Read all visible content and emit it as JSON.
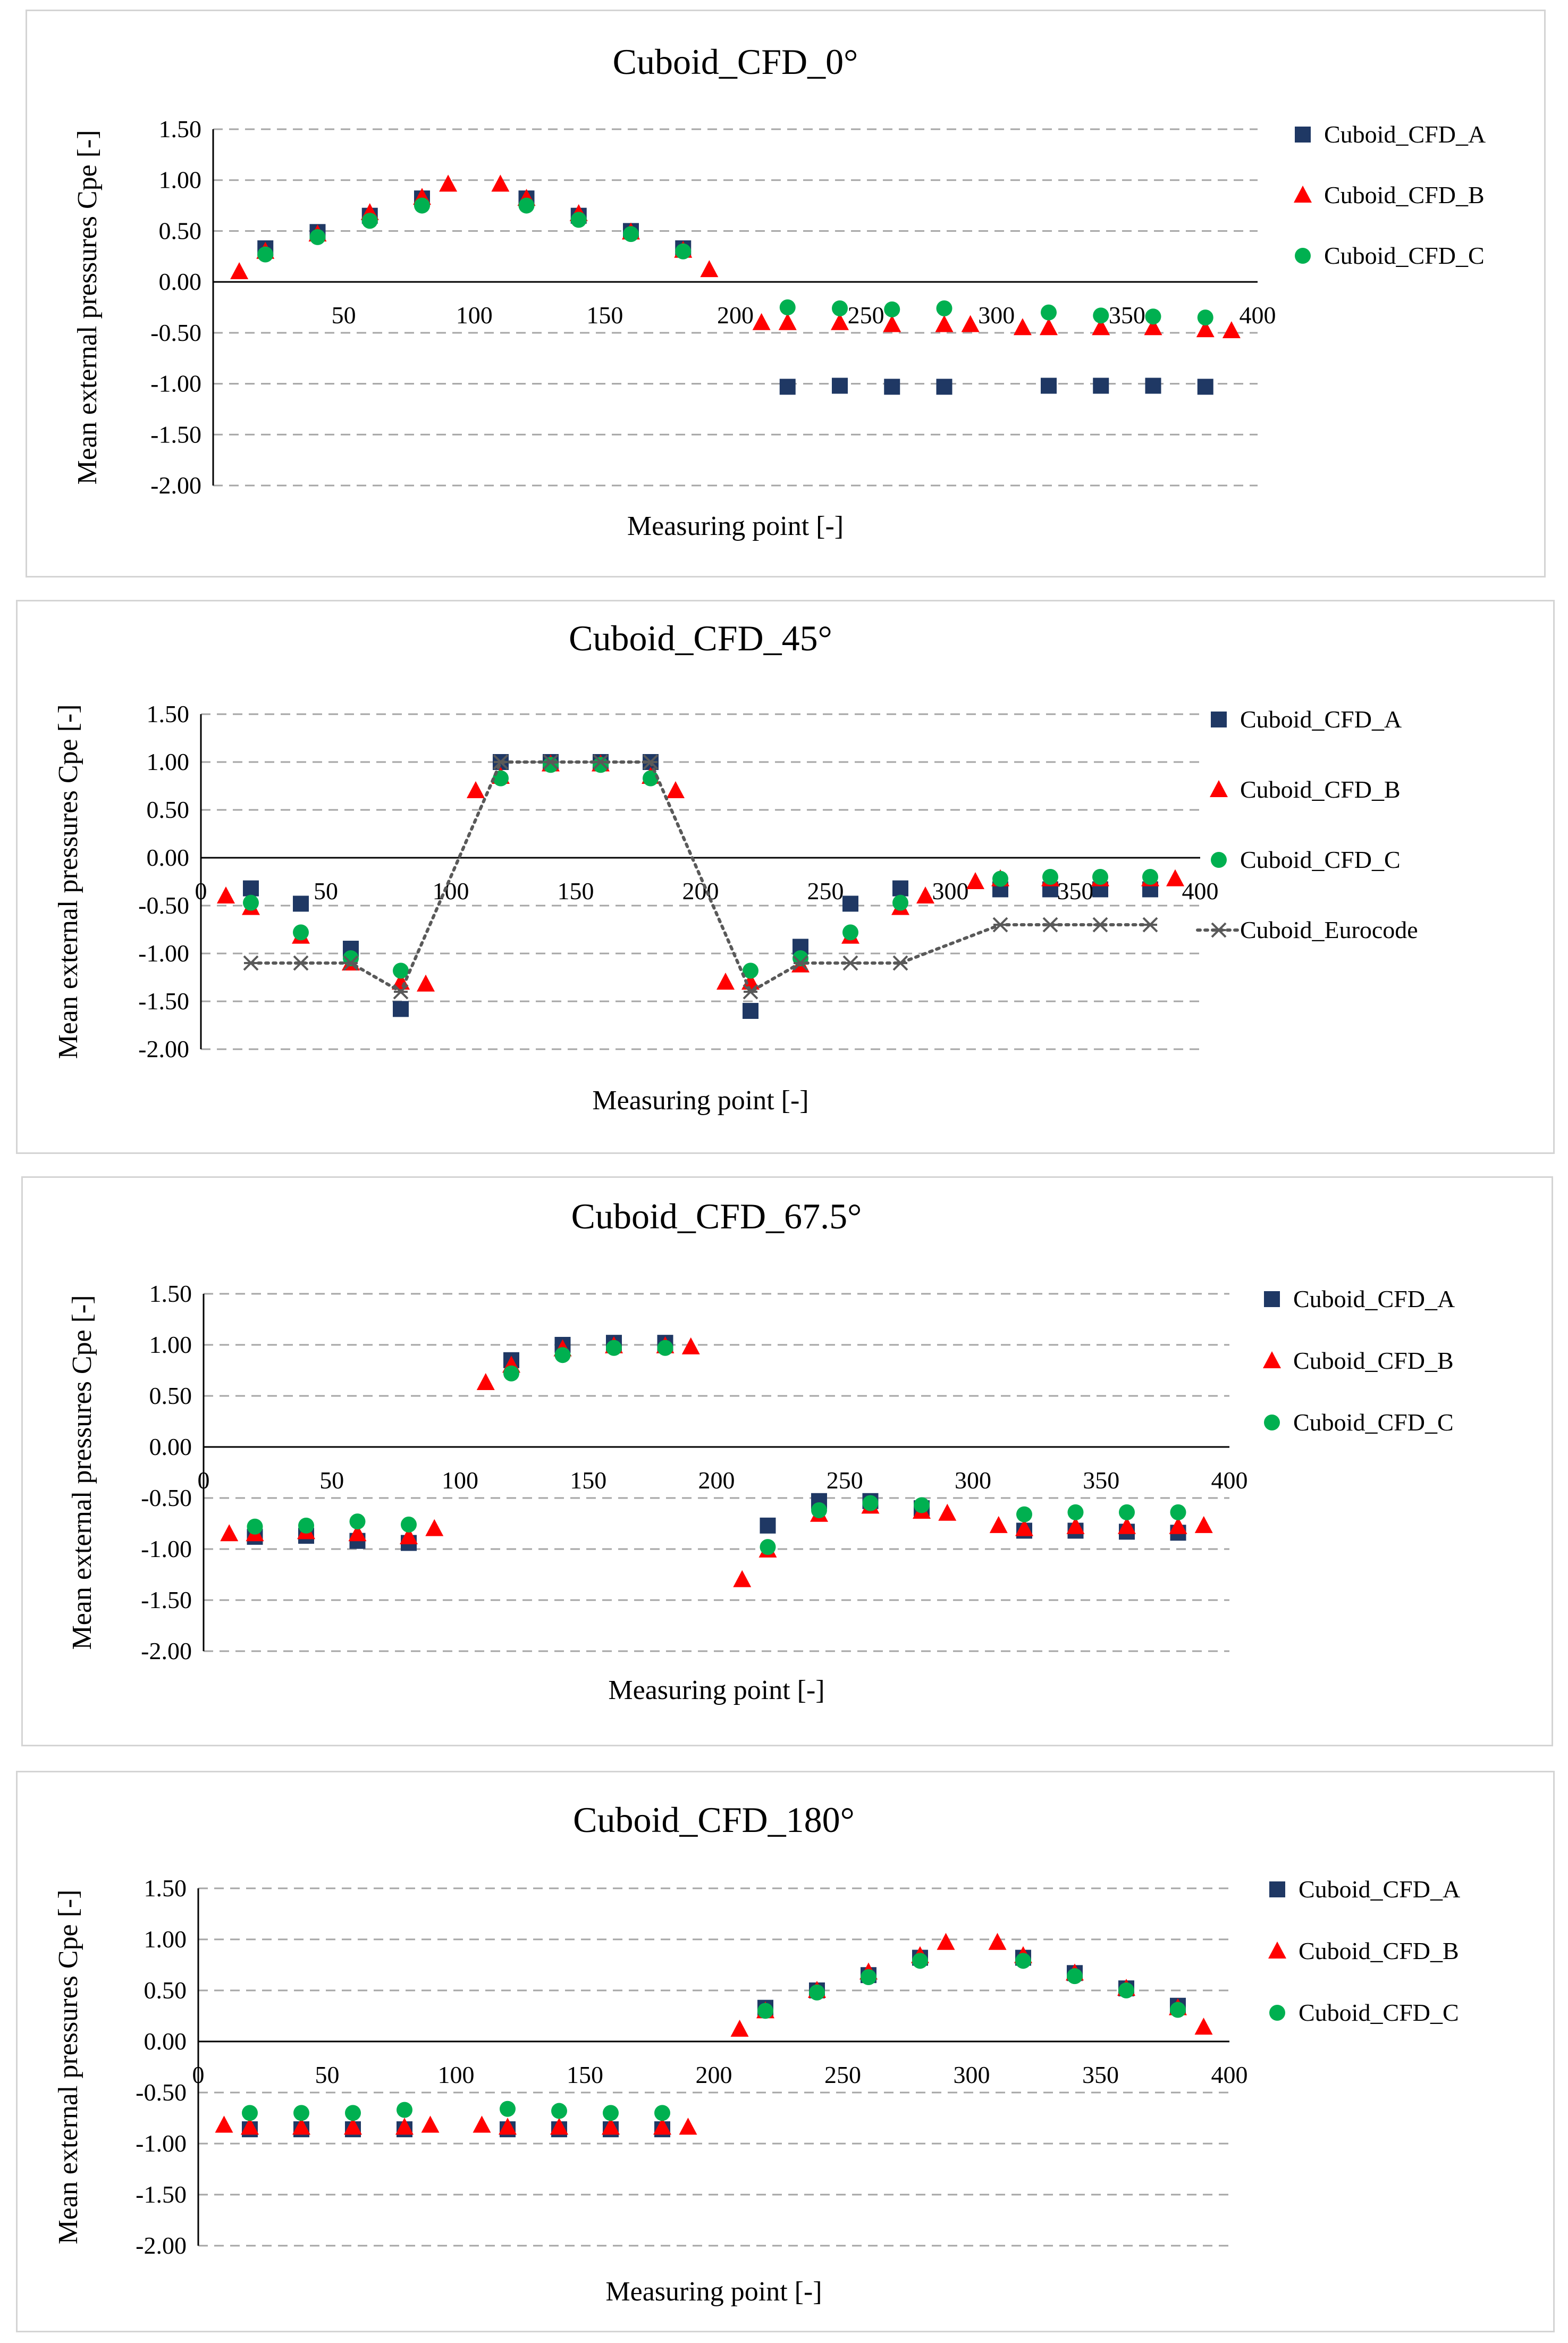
{
  "colors": {
    "A": "#1f3864",
    "B": "#ff0000",
    "C": "#00b050",
    "Euro": "#595959",
    "grid": "#a6a6a6"
  },
  "chart_data": [
    {
      "type": "scatter",
      "title": "Cuboid_CFD_0°",
      "xlabel": "Measuring point [-]",
      "ylabel": "Mean external pressures Cpe [-]",
      "xlim": [
        0,
        400
      ],
      "ylim": [
        -2.0,
        1.5
      ],
      "xticks": [
        "50",
        "100",
        "150",
        "200",
        "250",
        "300",
        "350",
        "400"
      ],
      "yticks": [
        "1.50",
        "1.00",
        "0.50",
        "0.00",
        "-0.50",
        "-1.00",
        "-1.50",
        "-2.00"
      ],
      "legend": "right",
      "series": [
        {
          "name": "Cuboid_CFD_A",
          "marker": "square",
          "x": [
            20,
            40,
            60,
            80,
            120,
            140,
            160,
            180,
            220,
            240,
            260,
            280,
            320,
            340,
            360,
            380
          ],
          "y": [
            0.33,
            0.49,
            0.65,
            0.82,
            0.82,
            0.65,
            0.5,
            0.33,
            -1.03,
            -1.02,
            -1.03,
            -1.03,
            -1.02,
            -1.02,
            -1.02,
            -1.03
          ]
        },
        {
          "name": "Cuboid_CFD_B",
          "marker": "triangle",
          "x": [
            10,
            20,
            40,
            60,
            80,
            90,
            110,
            120,
            140,
            160,
            180,
            190,
            210,
            220,
            240,
            260,
            280,
            290,
            310,
            320,
            340,
            360,
            380,
            390
          ],
          "y": [
            0.1,
            0.3,
            0.47,
            0.68,
            0.83,
            0.96,
            0.96,
            0.82,
            0.67,
            0.49,
            0.31,
            0.12,
            -0.4,
            -0.4,
            -0.4,
            -0.42,
            -0.42,
            -0.42,
            -0.45,
            -0.45,
            -0.45,
            -0.45,
            -0.47,
            -0.48
          ]
        },
        {
          "name": "Cuboid_CFD_C",
          "marker": "circle",
          "x": [
            20,
            40,
            60,
            80,
            120,
            140,
            160,
            180,
            220,
            240,
            260,
            280,
            320,
            340,
            360,
            380
          ],
          "y": [
            0.27,
            0.44,
            0.6,
            0.75,
            0.75,
            0.61,
            0.47,
            0.3,
            -0.25,
            -0.26,
            -0.27,
            -0.26,
            -0.3,
            -0.33,
            -0.34,
            -0.35
          ]
        }
      ]
    },
    {
      "type": "scatter",
      "title": "Cuboid_CFD_45°",
      "xlabel": "Measuring point [-]",
      "ylabel": "Mean external pressures Cpe [-]",
      "xlim": [
        0,
        400
      ],
      "ylim": [
        -2.0,
        1.5
      ],
      "xticks": [
        "0",
        "50",
        "100",
        "150",
        "200",
        "250",
        "300",
        "350",
        "400"
      ],
      "yticks": [
        "1.50",
        "1.00",
        "0.50",
        "0.00",
        "-0.50",
        "-1.00",
        "-1.50",
        "-2.00"
      ],
      "legend": "right",
      "series": [
        {
          "name": "Cuboid_CFD_A",
          "marker": "square",
          "x": [
            20,
            40,
            60,
            80,
            120,
            140,
            160,
            180,
            220,
            240,
            260,
            280,
            320,
            340,
            360,
            380
          ],
          "y": [
            -0.32,
            -0.48,
            -0.95,
            -1.58,
            1.0,
            1.0,
            1.0,
            1.0,
            -1.6,
            -0.93,
            -0.48,
            -0.32,
            -0.33,
            -0.33,
            -0.33,
            -0.33
          ]
        },
        {
          "name": "Cuboid_CFD_B",
          "marker": "triangle",
          "x": [
            10,
            20,
            40,
            60,
            80,
            90,
            110,
            120,
            140,
            160,
            180,
            190,
            210,
            220,
            240,
            260,
            280,
            290,
            310,
            320,
            340,
            360,
            380,
            390
          ],
          "y": [
            -0.4,
            -0.52,
            -0.82,
            -1.1,
            -1.3,
            -1.32,
            0.7,
            0.85,
            0.98,
            0.98,
            0.85,
            0.7,
            -1.3,
            -1.3,
            -1.12,
            -0.82,
            -0.52,
            -0.4,
            -0.25,
            -0.22,
            -0.22,
            -0.22,
            -0.22,
            -0.22
          ]
        },
        {
          "name": "Cuboid_CFD_C",
          "marker": "circle",
          "x": [
            20,
            40,
            60,
            80,
            120,
            140,
            160,
            180,
            220,
            240,
            260,
            280,
            320,
            340,
            360,
            380
          ],
          "y": [
            -0.47,
            -0.78,
            -1.05,
            -1.18,
            0.83,
            0.97,
            0.97,
            0.83,
            -1.18,
            -1.05,
            -0.78,
            -0.47,
            -0.22,
            -0.2,
            -0.2,
            -0.2
          ]
        },
        {
          "name": "Cuboid_Eurocode",
          "marker": "star",
          "line": "dotted",
          "x": [
            20,
            40,
            60,
            80,
            120,
            140,
            160,
            180,
            220,
            240,
            260,
            280,
            320,
            340,
            360,
            380
          ],
          "y": [
            -1.1,
            -1.1,
            -1.1,
            -1.4,
            1.0,
            1.0,
            1.0,
            1.0,
            -1.4,
            -1.1,
            -1.1,
            -1.1,
            -0.7,
            -0.7,
            -0.7,
            -0.7
          ]
        }
      ]
    },
    {
      "type": "scatter",
      "title": "Cuboid_CFD_67.5°",
      "xlabel": "Measuring point [-]",
      "ylabel": "Mean external pressures Cpe [-]",
      "xlim": [
        0,
        400
      ],
      "ylim": [
        -2.0,
        1.5
      ],
      "xticks": [
        "0",
        "50",
        "100",
        "150",
        "200",
        "250",
        "300",
        "350",
        "400"
      ],
      "yticks": [
        "1.50",
        "1.00",
        "0.50",
        "0.00",
        "-0.50",
        "-1.00",
        "-1.50",
        "-2.00"
      ],
      "legend": "right",
      "series": [
        {
          "name": "Cuboid_CFD_A",
          "marker": "square",
          "x": [
            20,
            40,
            60,
            80,
            120,
            140,
            160,
            180,
            220,
            240,
            260,
            280,
            320,
            340,
            360,
            380
          ],
          "y": [
            -0.88,
            -0.87,
            -0.92,
            -0.94,
            0.85,
            1.0,
            1.02,
            1.02,
            -0.77,
            -0.53,
            -0.53,
            -0.6,
            -0.82,
            -0.82,
            -0.83,
            -0.84
          ]
        },
        {
          "name": "Cuboid_CFD_B",
          "marker": "triangle",
          "x": [
            10,
            20,
            40,
            60,
            80,
            90,
            110,
            120,
            140,
            160,
            180,
            190,
            210,
            220,
            240,
            260,
            280,
            290,
            310,
            320,
            340,
            360,
            380,
            390
          ],
          "y": [
            -0.85,
            -0.85,
            -0.83,
            -0.85,
            -0.88,
            -0.8,
            0.63,
            0.8,
            0.96,
            0.99,
            0.99,
            0.98,
            -1.3,
            -1.01,
            -0.66,
            -0.58,
            -0.63,
            -0.65,
            -0.77,
            -0.8,
            -0.78,
            -0.78,
            -0.78,
            -0.77
          ]
        },
        {
          "name": "Cuboid_CFD_C",
          "marker": "circle",
          "x": [
            20,
            40,
            60,
            80,
            120,
            140,
            160,
            180,
            220,
            240,
            260,
            280,
            320,
            340,
            360,
            380
          ],
          "y": [
            -0.78,
            -0.77,
            -0.73,
            -0.76,
            0.72,
            0.9,
            0.97,
            0.97,
            -0.98,
            -0.62,
            -0.55,
            -0.57,
            -0.66,
            -0.64,
            -0.64,
            -0.64
          ]
        }
      ]
    },
    {
      "type": "scatter",
      "title": "Cuboid_CFD_180°",
      "xlabel": "Measuring point [-]",
      "ylabel": "Mean external pressures Cpe [-]",
      "xlim": [
        0,
        400
      ],
      "ylim": [
        -2.0,
        1.5
      ],
      "xticks": [
        "0",
        "50",
        "100",
        "150",
        "200",
        "250",
        "300",
        "350",
        "400"
      ],
      "yticks": [
        "1.50",
        "1.00",
        "0.50",
        "0.00",
        "-0.50",
        "-1.00",
        "-1.50",
        "-2.00"
      ],
      "legend": "right",
      "series": [
        {
          "name": "Cuboid_CFD_A",
          "marker": "square",
          "x": [
            20,
            40,
            60,
            80,
            120,
            140,
            160,
            180,
            220,
            240,
            260,
            280,
            320,
            340,
            360,
            380
          ],
          "y": [
            -0.86,
            -0.86,
            -0.86,
            -0.86,
            -0.86,
            -0.86,
            -0.86,
            -0.86,
            0.33,
            0.5,
            0.65,
            0.82,
            0.82,
            0.67,
            0.52,
            0.35
          ]
        },
        {
          "name": "Cuboid_CFD_B",
          "marker": "triangle",
          "x": [
            10,
            20,
            40,
            60,
            80,
            90,
            110,
            120,
            140,
            160,
            180,
            190,
            210,
            220,
            240,
            260,
            280,
            290,
            310,
            320,
            340,
            360,
            380,
            390
          ],
          "y": [
            -0.82,
            -0.84,
            -0.84,
            -0.84,
            -0.84,
            -0.82,
            -0.82,
            -0.84,
            -0.84,
            -0.84,
            -0.84,
            -0.84,
            0.12,
            0.3,
            0.5,
            0.68,
            0.84,
            0.97,
            0.97,
            0.84,
            0.67,
            0.52,
            0.33,
            0.14
          ]
        },
        {
          "name": "Cuboid_CFD_C",
          "marker": "circle",
          "x": [
            20,
            40,
            60,
            80,
            120,
            140,
            160,
            180,
            220,
            240,
            260,
            280,
            320,
            340,
            360,
            380
          ],
          "y": [
            -0.7,
            -0.7,
            -0.7,
            -0.67,
            -0.66,
            -0.68,
            -0.7,
            -0.7,
            0.3,
            0.48,
            0.63,
            0.79,
            0.79,
            0.64,
            0.5,
            0.31
          ]
        }
      ]
    }
  ]
}
